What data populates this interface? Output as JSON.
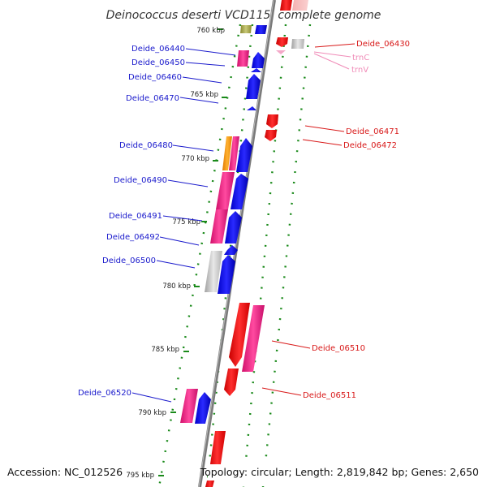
{
  "title": "Deinococcus deserti VCD115, complete genome",
  "footer": {
    "accession": "Accession: NC_012526",
    "stats": "Topology: circular; Length: 2,819,842 bp; Genes: 2,650"
  },
  "colors": {
    "forward_cds": "#1515e6",
    "reverse_cds": "#e81414",
    "forward_other": "#e8207f",
    "reverse_other": "#e8207f",
    "backbone": "#808080",
    "ticks": "#1a8a1a",
    "label_left": "#1a1acc",
    "label_right": "#d81818",
    "label_trna": "#f08cb8"
  },
  "scale": {
    "unit": "kbp",
    "ticks": [
      {
        "text": "760 kbp"
      },
      {
        "text": "765 kbp"
      },
      {
        "text": "770 kbp"
      },
      {
        "text": "775 kbp"
      },
      {
        "text": "780 kbp"
      },
      {
        "text": "785 kbp"
      },
      {
        "text": "790 kbp"
      },
      {
        "text": "795 kbp"
      }
    ]
  },
  "labels_left": [
    {
      "text": "Deide_06440"
    },
    {
      "text": "Deide_06450"
    },
    {
      "text": "Deide_06460"
    },
    {
      "text": "Deide_06470"
    },
    {
      "text": "Deide_06480"
    },
    {
      "text": "Deide_06490"
    },
    {
      "text": "Deide_06491"
    },
    {
      "text": "Deide_06492"
    },
    {
      "text": "Deide_06500"
    },
    {
      "text": "Deide_06520"
    }
  ],
  "labels_right": [
    {
      "text": "Deide_06430"
    },
    {
      "text": "trnC"
    },
    {
      "text": "trnV"
    },
    {
      "text": "Deide_06471"
    },
    {
      "text": "Deide_06472"
    },
    {
      "text": "Deide_06510"
    },
    {
      "text": "Deide_06511"
    }
  ]
}
